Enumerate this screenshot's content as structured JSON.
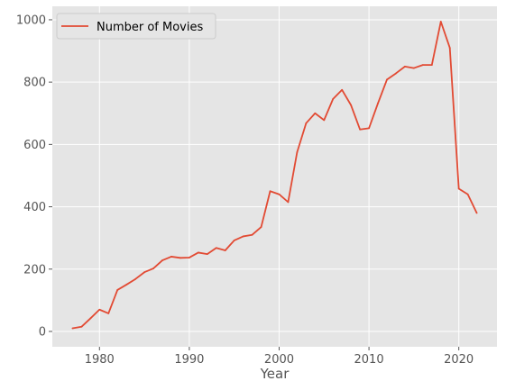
{
  "chart_data": {
    "type": "line",
    "title": "",
    "xlabel": "Year",
    "ylabel": "",
    "xlim": [
      1974.75,
      2024.25
    ],
    "ylim": [
      -49.2,
      1043.2
    ],
    "xticks": [
      1980,
      1990,
      2000,
      2010,
      2020
    ],
    "yticks": [
      0,
      200,
      400,
      600,
      800,
      1000
    ],
    "grid": true,
    "legend": "top-left",
    "background": "#e5e5e5",
    "grid_color": "#ffffff",
    "series": [
      {
        "name": "Number of Movies",
        "color": "#e24a33",
        "x": [
          1977,
          1978,
          1979,
          1980,
          1981,
          1982,
          1983,
          1984,
          1985,
          1986,
          1987,
          1988,
          1989,
          1990,
          1991,
          1992,
          1993,
          1994,
          1995,
          1996,
          1997,
          1998,
          1999,
          2000,
          2001,
          2002,
          2003,
          2004,
          2005,
          2006,
          2007,
          2008,
          2009,
          2010,
          2011,
          2012,
          2013,
          2014,
          2015,
          2016,
          2017,
          2018,
          2019,
          2020,
          2021,
          2022
        ],
        "y": [
          10,
          15,
          42,
          70,
          58,
          133,
          150,
          168,
          190,
          202,
          228,
          240,
          236,
          237,
          253,
          248,
          268,
          260,
          292,
          305,
          310,
          335,
          450,
          440,
          415,
          575,
          668,
          700,
          678,
          746,
          775,
          726,
          648,
          652,
          732,
          808,
          828,
          850,
          845,
          855,
          855,
          994,
          910,
          458,
          440,
          380
        ]
      }
    ]
  }
}
